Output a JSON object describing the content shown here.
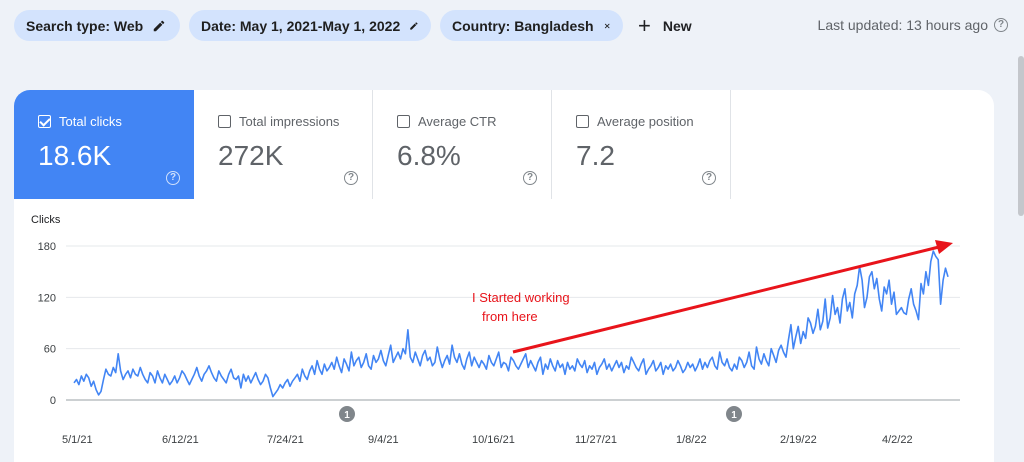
{
  "filters": {
    "search_type": "Search type: Web",
    "date": "Date: May 1, 2021-May 1, 2022",
    "country": "Country: Bangladesh",
    "new_label": "New",
    "search_icon": "pencil-icon",
    "date_icon": "pencil-icon",
    "country_icon": "close-icon"
  },
  "last_updated": "Last updated: 13 hours ago",
  "metrics": [
    {
      "label": "Total clicks",
      "value": "18.6K",
      "checked": true
    },
    {
      "label": "Total impressions",
      "value": "272K",
      "checked": false
    },
    {
      "label": "Average CTR",
      "value": "6.8%",
      "checked": false
    },
    {
      "label": "Average position",
      "value": "7.2",
      "checked": false
    }
  ],
  "annotation": {
    "line1": "I Started working",
    "line2": "from here"
  },
  "markers": [
    "1",
    "1"
  ],
  "colors": {
    "accent": "#4285f4",
    "chip_bg": "#d3e3fd",
    "line": "#4285f4",
    "arrow": "#e8141b"
  },
  "chart_data": {
    "type": "line",
    "title": "",
    "ylabel": "Clicks",
    "xlabel": "",
    "ylim": [
      0,
      180
    ],
    "yticks": [
      "0",
      "60",
      "120",
      "180"
    ],
    "xticks": [
      "5/1/21",
      "6/12/21",
      "7/24/21",
      "9/4/21",
      "10/16/21",
      "11/27/21",
      "1/8/22",
      "2/19/22",
      "4/2/22"
    ],
    "grid": true,
    "series": [
      {
        "values": [
          20,
          24,
          18,
          28,
          22,
          30,
          26,
          16,
          22,
          12,
          6,
          10,
          24,
          36,
          30,
          28,
          38,
          32,
          54,
          34,
          24,
          30,
          34,
          26,
          36,
          30,
          28,
          38,
          30,
          24,
          20,
          32,
          28,
          20,
          34,
          26,
          20,
          30,
          24,
          18,
          22,
          28,
          20,
          26,
          34,
          30,
          24,
          18,
          24,
          30,
          38,
          28,
          22,
          30,
          34,
          40,
          32,
          26,
          22,
          34,
          28,
          24,
          20,
          30,
          36,
          26,
          24,
          28,
          14,
          30,
          22,
          28,
          20,
          26,
          32,
          24,
          18,
          22,
          30,
          26,
          14,
          4,
          8,
          12,
          18,
          14,
          20,
          24,
          16,
          22,
          26,
          30,
          22,
          36,
          28,
          24,
          34,
          40,
          30,
          46,
          36,
          30,
          42,
          34,
          38,
          44,
          36,
          50,
          40,
          32,
          48,
          42,
          34,
          56,
          40,
          46,
          50,
          38,
          44,
          54,
          40,
          36,
          52,
          44,
          48,
          58,
          46,
          40,
          52,
          64,
          44,
          50,
          56,
          48,
          60,
          54,
          82,
          50,
          44,
          56,
          48,
          40,
          52,
          58,
          46,
          50,
          40,
          44,
          62,
          48,
          38,
          46,
          52,
          42,
          64,
          50,
          44,
          54,
          42,
          36,
          48,
          56,
          40,
          50,
          44,
          38,
          46,
          42,
          36,
          52,
          44,
          40,
          48,
          56,
          38,
          44,
          42,
          34,
          50,
          46,
          40,
          36,
          42,
          48,
          54,
          38,
          46,
          40,
          34,
          44,
          50,
          30,
          42,
          36,
          48,
          40,
          34,
          46,
          38,
          42,
          30,
          44,
          36,
          40,
          34,
          48,
          42,
          38,
          46,
          32,
          40,
          36,
          44,
          30,
          38,
          42,
          48,
          36,
          42,
          34,
          40,
          46,
          38,
          44,
          32,
          40,
          36,
          50,
          44,
          38,
          34,
          42,
          48,
          30,
          36,
          40,
          46,
          34,
          38,
          44,
          30,
          40,
          36,
          42,
          34,
          38,
          46,
          40,
          32,
          36,
          44,
          38,
          42,
          34,
          40,
          48,
          36,
          44,
          38,
          46,
          50,
          40,
          36,
          56,
          44,
          40,
          48,
          38,
          34,
          42,
          36,
          50,
          46,
          38,
          44,
          56,
          40,
          36,
          62,
          48,
          42,
          54,
          46,
          40,
          60,
          52,
          44,
          58,
          64,
          56,
          50,
          70,
          88,
          60,
          74,
          86,
          66,
          80,
          72,
          96,
          90,
          78,
          86,
          106,
          82,
          92,
          118,
          84,
          96,
          122,
          100,
          108,
          90,
          118,
          130,
          104,
          114,
          96,
          124,
          134,
          156,
          140,
          108,
          120,
          144,
          150,
          130,
          142,
          118,
          104,
          132,
          124,
          140,
          112,
          126,
          100,
          104,
          108,
          102,
          100,
          118,
          130,
          112,
          104,
          94,
          136,
          124,
          150,
          134,
          162,
          174,
          168,
          164,
          112,
          140,
          154,
          144
        ]
      }
    ]
  }
}
